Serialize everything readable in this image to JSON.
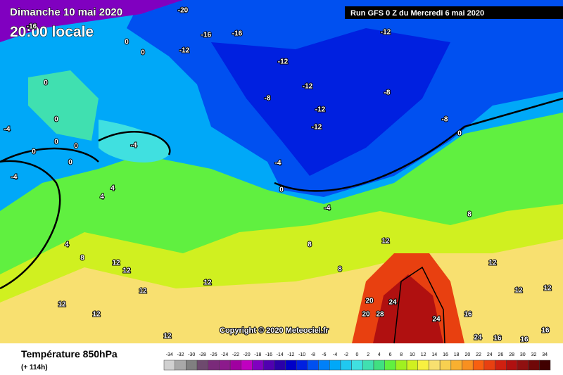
{
  "header": {
    "date": "Dimanche 10 mai 2020",
    "time": "20:00 locale",
    "run": "Run GFS 0 Z du Mercredi 6 mai 2020"
  },
  "map": {
    "contour_labels": [
      -20,
      -16,
      -16,
      -16,
      -12,
      -12,
      -12,
      -12,
      -12,
      -12,
      -8,
      -8,
      -8,
      -4,
      -4,
      -4,
      -4,
      -4,
      0,
      0,
      0,
      0,
      0,
      0,
      0,
      0,
      0,
      0,
      4,
      4,
      4,
      8,
      8,
      8,
      8,
      12,
      12,
      12,
      12,
      12,
      12,
      12,
      12,
      12,
      12,
      12,
      16,
      16,
      16,
      20,
      20,
      24,
      24,
      24,
      28,
      16
    ],
    "copyright": "Copyright © 2020 Meteociel.fr"
  },
  "footer": {
    "title": "Température 850hPa",
    "lead": "(+ 114h)"
  },
  "legend": {
    "labels": [
      -34,
      -32,
      -30,
      -28,
      -26,
      -24,
      -22,
      -20,
      -18,
      -16,
      -14,
      -12,
      -10,
      -8,
      -6,
      -4,
      -2,
      0,
      2,
      4,
      6,
      8,
      10,
      12,
      14,
      16,
      18,
      20,
      22,
      24,
      26,
      28,
      30,
      32,
      34
    ],
    "colors": [
      "#d0d0d0",
      "#a8a8a8",
      "#808080",
      "#6e4a6e",
      "#7a2a7a",
      "#8c1a8c",
      "#a000a0",
      "#c000c0",
      "#8000c0",
      "#5000b0",
      "#2a00a8",
      "#0000c8",
      "#0020e0",
      "#0050f0",
      "#0080f8",
      "#00a8f8",
      "#20c8f0",
      "#40e0e0",
      "#40e0b0",
      "#40e080",
      "#60f040",
      "#a0f020",
      "#d0f020",
      "#f8f040",
      "#f8e070",
      "#f8d050",
      "#f8b030",
      "#f89020",
      "#f86010",
      "#e84010",
      "#d02010",
      "#b01010",
      "#901010",
      "#700808",
      "#400000"
    ]
  }
}
